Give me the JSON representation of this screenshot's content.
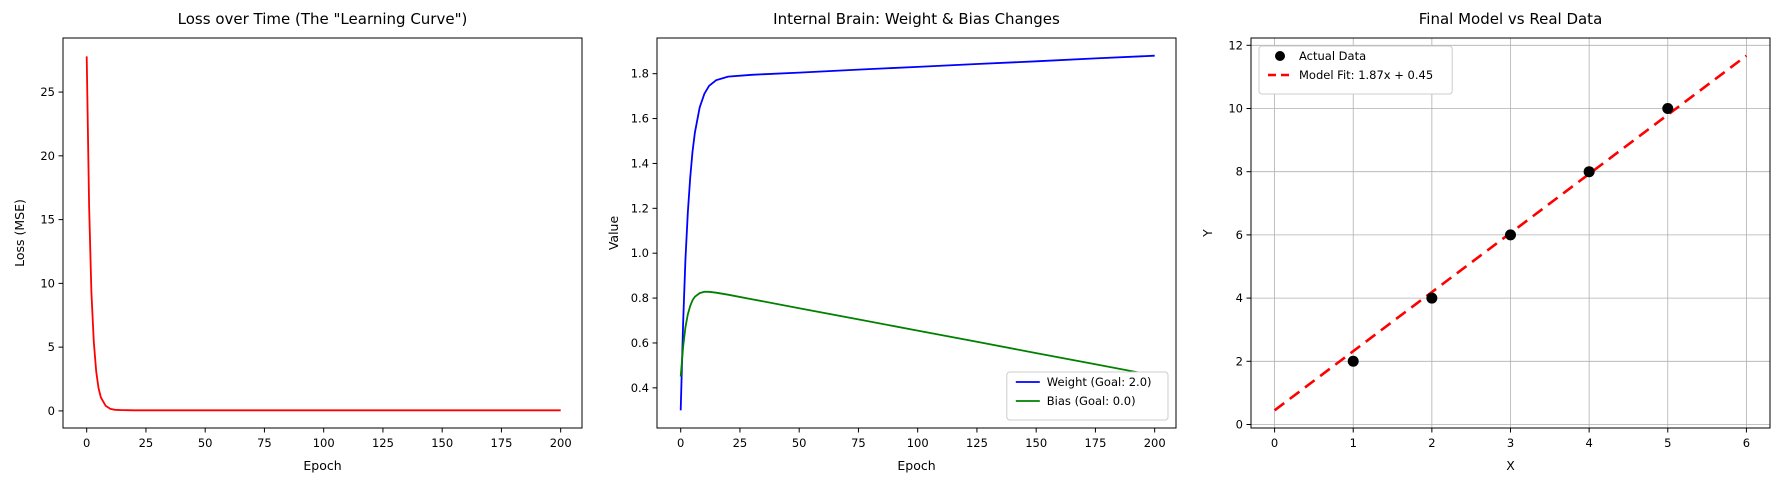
{
  "figure": {
    "background": "#ffffff",
    "grid_color": "#b0b0b0",
    "axes_color": "#000000"
  },
  "chart_data": [
    {
      "type": "line",
      "title": "Loss over Time (The \"Learning Curve\")",
      "xlabel": "Epoch",
      "ylabel": "Loss (MSE)",
      "xlim": [
        -10,
        209
      ],
      "ylim": [
        -1.34,
        29.24
      ],
      "grid": false,
      "xticks": {
        "values": [
          0,
          25,
          50,
          75,
          100,
          125,
          150,
          175,
          200
        ],
        "labels": [
          "0",
          "25",
          "50",
          "75",
          "100",
          "125",
          "150",
          "175",
          "200"
        ]
      },
      "yticks": {
        "values": [
          0,
          5,
          10,
          15,
          20,
          25
        ],
        "labels": [
          "0",
          "5",
          "10",
          "15",
          "20",
          "25"
        ]
      },
      "series": [
        {
          "name": "loss",
          "color": "#ff0000",
          "style": "solid",
          "x": [
            0,
            1,
            2,
            3,
            4,
            5,
            6,
            8,
            10,
            12,
            15,
            20,
            30,
            50,
            75,
            100,
            125,
            150,
            175,
            200
          ],
          "y": [
            27.8,
            16.1,
            9.3,
            5.4,
            3.1,
            1.8,
            1.05,
            0.39,
            0.16,
            0.09,
            0.06,
            0.05,
            0.05,
            0.05,
            0.05,
            0.05,
            0.05,
            0.05,
            0.05,
            0.05
          ]
        }
      ]
    },
    {
      "type": "line",
      "title": "Internal Brain: Weight & Bias Changes",
      "xlabel": "Epoch",
      "ylabel": "Value",
      "xlim": [
        -10,
        209
      ],
      "ylim": [
        0.221,
        1.959
      ],
      "grid": false,
      "legend": {
        "position": "lower right"
      },
      "xticks": {
        "values": [
          0,
          25,
          50,
          75,
          100,
          125,
          150,
          175,
          200
        ],
        "labels": [
          "0",
          "25",
          "50",
          "75",
          "100",
          "125",
          "150",
          "175",
          "200"
        ]
      },
      "yticks": {
        "values": [
          0.4,
          0.6,
          0.8,
          1.0,
          1.2,
          1.4,
          1.6,
          1.8
        ],
        "labels": [
          "0.4",
          "0.6",
          "0.8",
          "1.0",
          "1.2",
          "1.4",
          "1.6",
          "1.8"
        ]
      },
      "series": [
        {
          "name": "Weight (Goal: 2.0)",
          "color": "#0000ff",
          "style": "solid",
          "x": [
            0,
            1,
            2,
            3,
            4,
            5,
            6,
            8,
            10,
            12,
            15,
            20,
            30,
            50,
            75,
            100,
            125,
            150,
            175,
            200
          ],
          "y": [
            0.3,
            0.685,
            0.969,
            1.18,
            1.336,
            1.452,
            1.538,
            1.65,
            1.711,
            1.746,
            1.771,
            1.787,
            1.795,
            1.805,
            1.818,
            1.83,
            1.843,
            1.855,
            1.868,
            1.88
          ]
        },
        {
          "name": "Bias (Goal: 0.0)",
          "color": "#008000",
          "style": "solid",
          "x": [
            0,
            1,
            2,
            3,
            4,
            5,
            6,
            8,
            10,
            12,
            15,
            20,
            30,
            50,
            75,
            100,
            125,
            150,
            175,
            200
          ],
          "y": [
            0.45,
            0.582,
            0.669,
            0.727,
            0.765,
            0.79,
            0.806,
            0.822,
            0.828,
            0.828,
            0.824,
            0.815,
            0.795,
            0.755,
            0.705,
            0.655,
            0.605,
            0.555,
            0.505,
            0.455
          ]
        }
      ]
    },
    {
      "type": "scatter",
      "title": "Final Model vs Real Data",
      "xlabel": "X",
      "ylabel": "Y",
      "xlim": [
        -0.3,
        6.3
      ],
      "ylim": [
        -0.111,
        12.231
      ],
      "grid": true,
      "legend": {
        "position": "upper left"
      },
      "xticks": {
        "values": [
          0,
          1,
          2,
          3,
          4,
          5,
          6
        ],
        "labels": [
          "0",
          "1",
          "2",
          "3",
          "4",
          "5",
          "6"
        ]
      },
      "yticks": {
        "values": [
          0,
          2,
          4,
          6,
          8,
          10,
          12
        ],
        "labels": [
          "0",
          "2",
          "4",
          "6",
          "8",
          "10",
          "12"
        ]
      },
      "scatter": {
        "name": "Actual Data",
        "color": "#000000",
        "x": [
          1,
          2,
          3,
          4,
          5
        ],
        "y": [
          2,
          4,
          6,
          8,
          10
        ]
      },
      "series": [
        {
          "name": "Model Fit: 1.87x + 0.45",
          "color": "#ff0000",
          "style": "dashed",
          "width": 2.6,
          "x": [
            0,
            6
          ],
          "y": [
            0.45,
            11.67
          ]
        }
      ]
    }
  ]
}
